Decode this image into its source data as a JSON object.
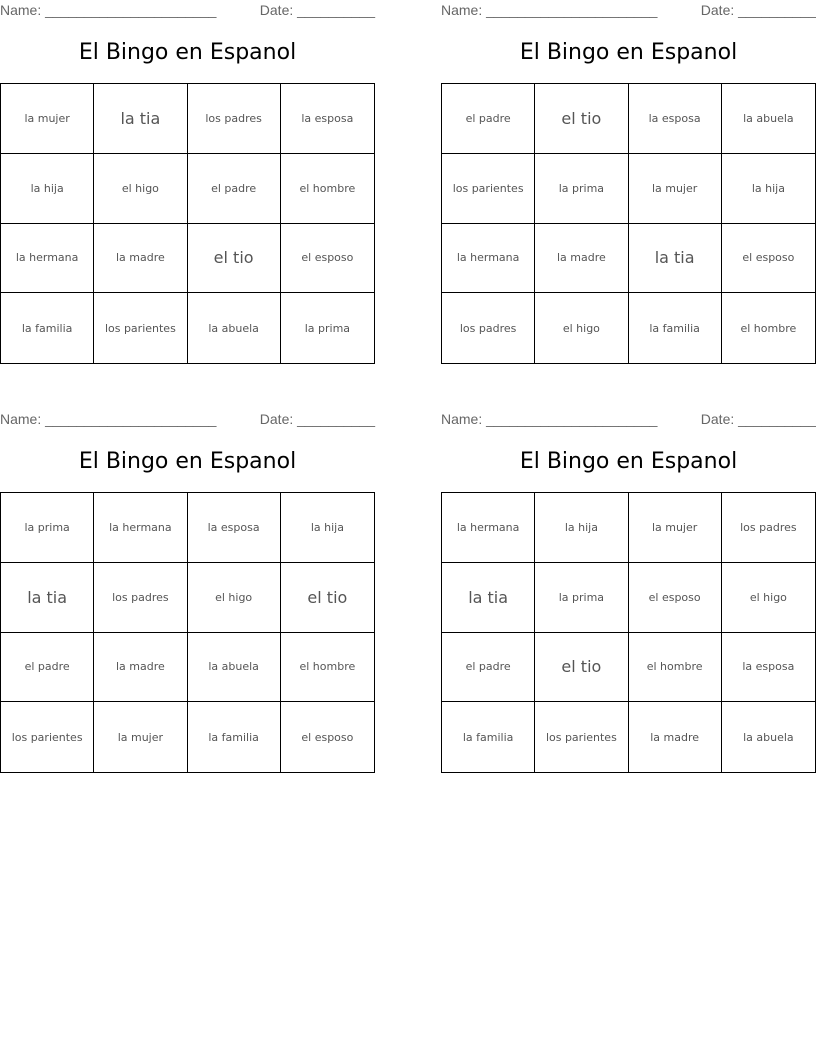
{
  "cards": [
    {
      "name_label": "Name: ______________________",
      "date_label": "Date: __________",
      "title": "El Bingo en Espanol",
      "cells": [
        "la mujer",
        "la tia",
        "los padres",
        "la esposa",
        "la hija",
        "el higo",
        "el padre",
        "el hombre",
        "la hermana",
        "la madre",
        "el tio",
        "el esposo",
        "la familia",
        "los parientes",
        "la abuela",
        "la prima"
      ]
    },
    {
      "name_label": "Name: ______________________",
      "date_label": "Date: __________",
      "title": "El Bingo en Espanol",
      "cells": [
        "el padre",
        "el tio",
        "la esposa",
        "la abuela",
        "los parientes",
        "la prima",
        "la mujer",
        "la hija",
        "la hermana",
        "la madre",
        "la tia",
        "el esposo",
        "los padres",
        "el higo",
        "la familia",
        "el hombre"
      ]
    },
    {
      "name_label": "Name: ______________________",
      "date_label": "Date: __________",
      "title": "El Bingo en Espanol",
      "cells": [
        "la prima",
        "la hermana",
        "la esposa",
        "la hija",
        "la tia",
        "los padres",
        "el higo",
        "el tio",
        "el padre",
        "la madre",
        "la abuela",
        "el hombre",
        "los parientes",
        "la mujer",
        "la familia",
        "el esposo"
      ]
    },
    {
      "name_label": "Name: ______________________",
      "date_label": "Date: __________",
      "title": "El Bingo en Espanol",
      "cells": [
        "la hermana",
        "la hija",
        "la mujer",
        "los padres",
        "la tia",
        "la prima",
        "el esposo",
        "el higo",
        "el padre",
        "el tio",
        "el hombre",
        "la esposa",
        "la familia",
        "los parientes",
        "la madre",
        "la abuela"
      ]
    }
  ]
}
